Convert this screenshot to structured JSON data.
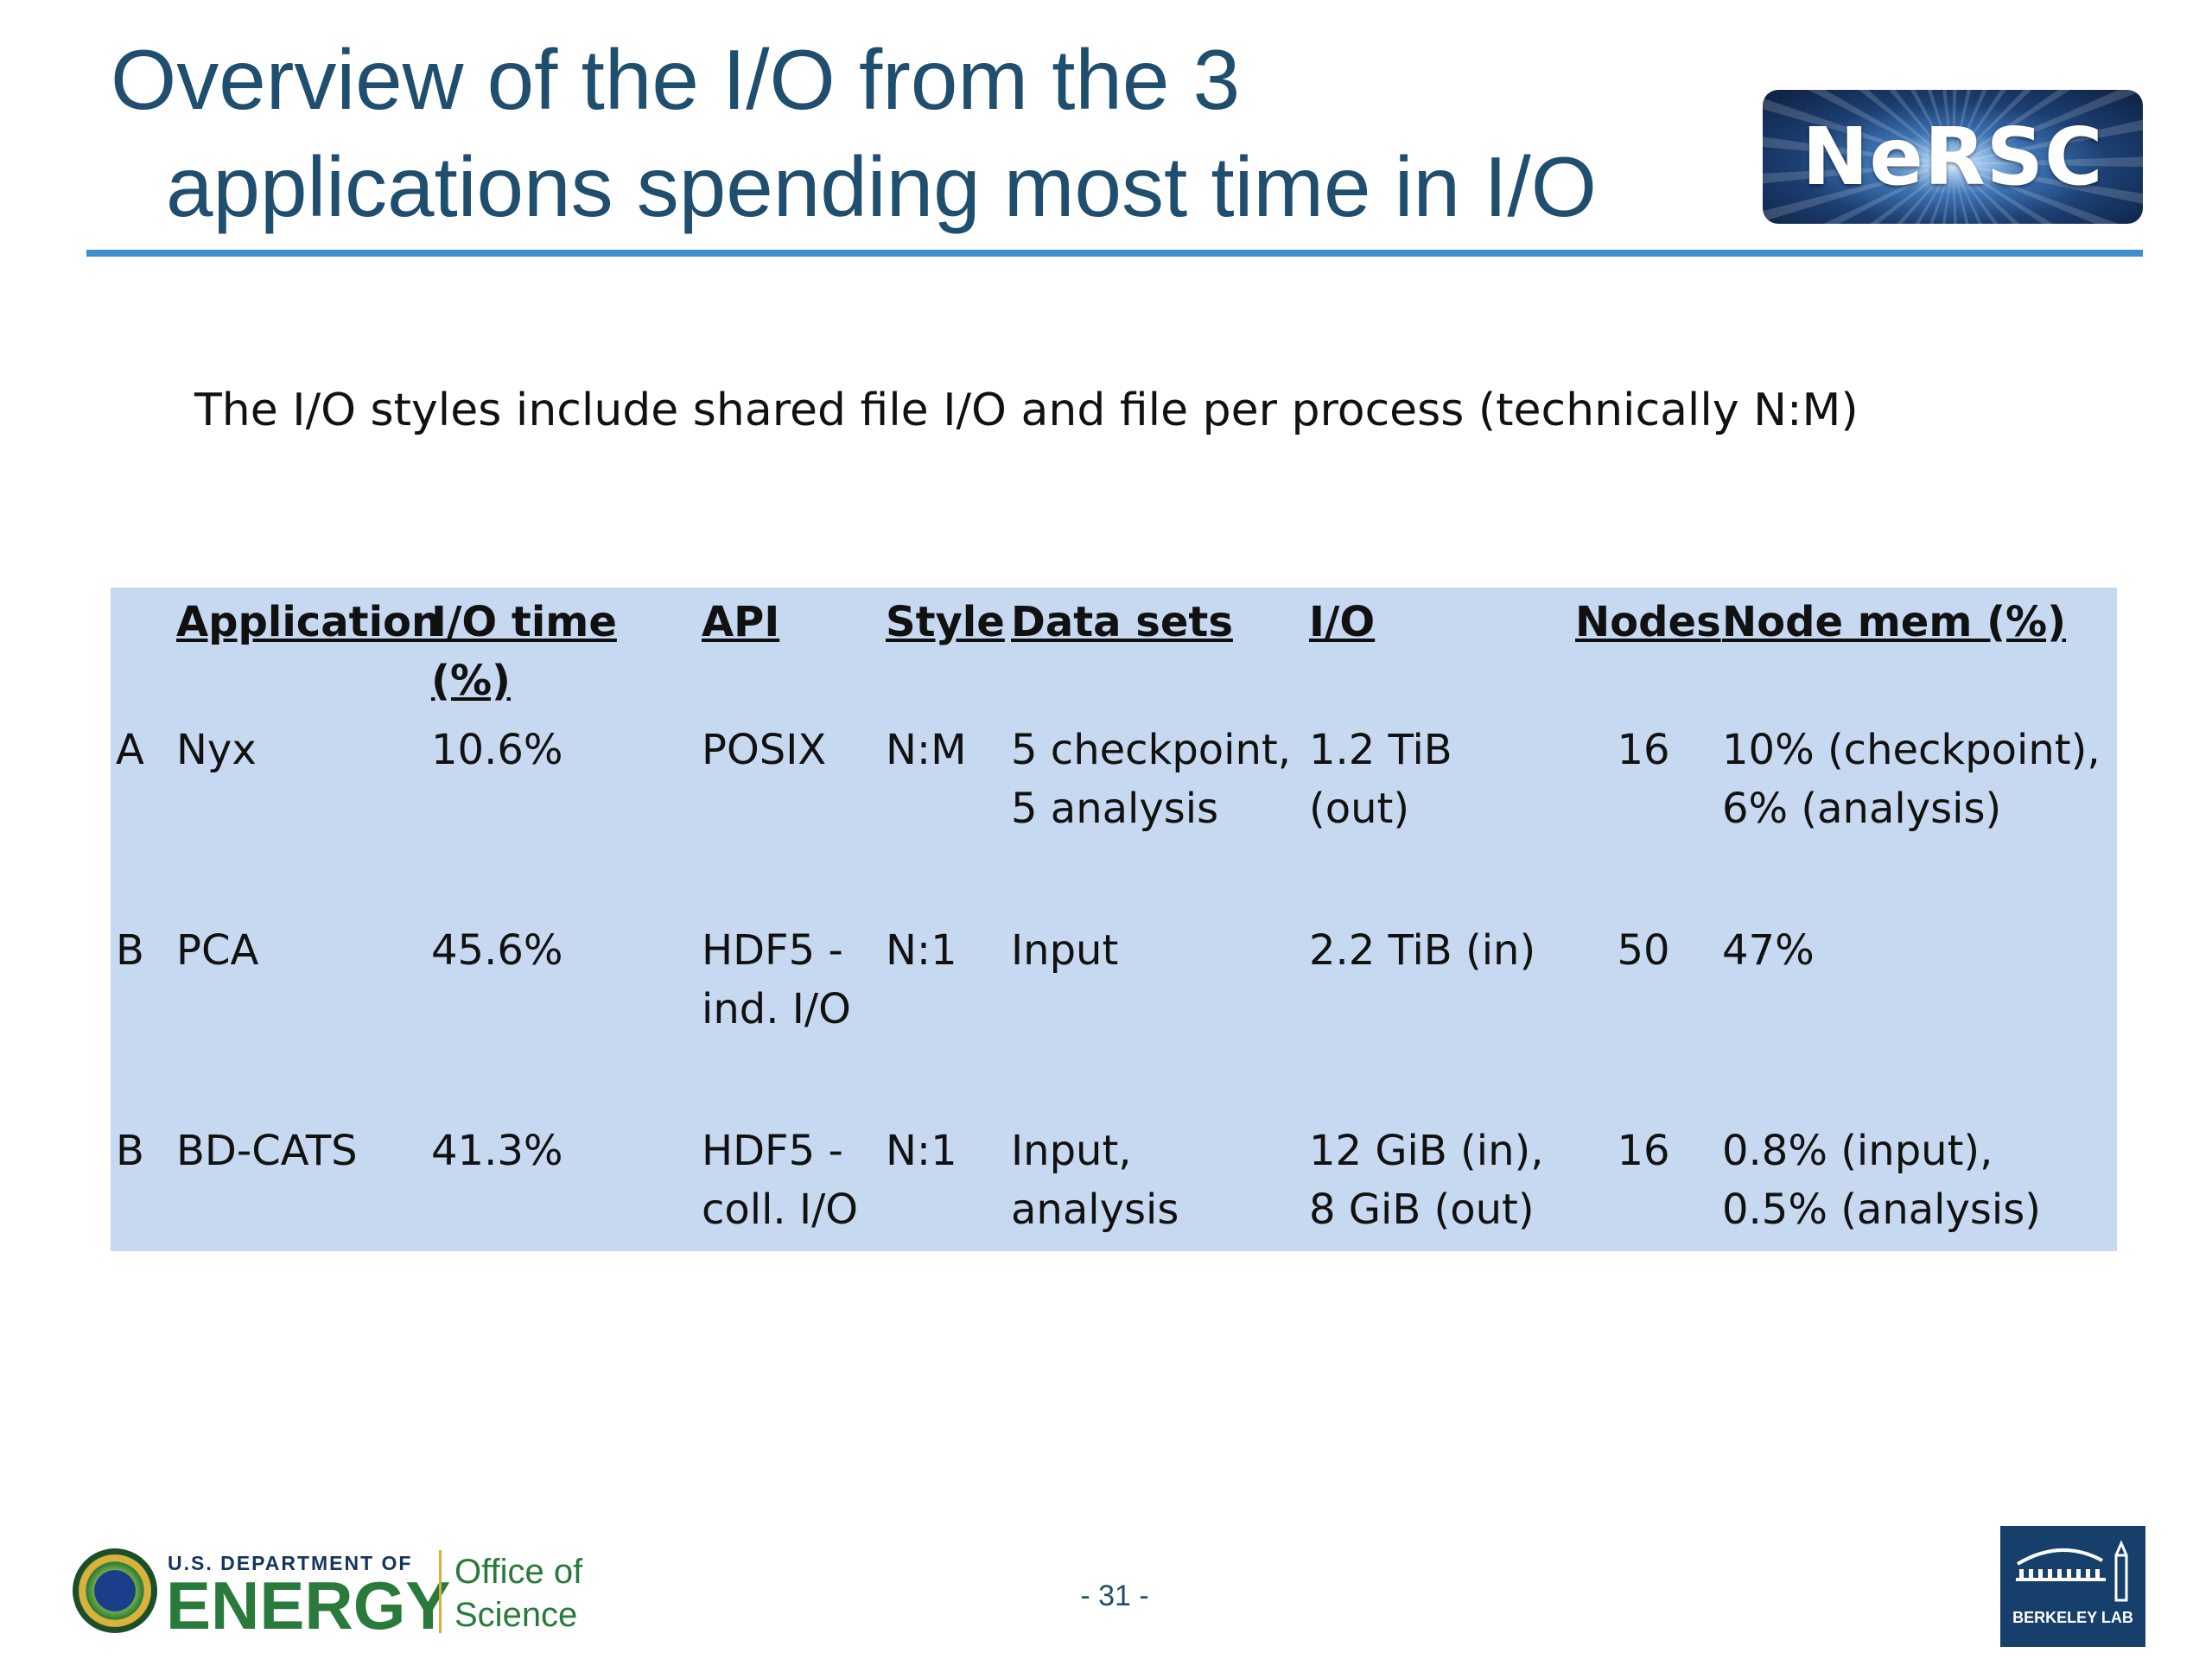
{
  "header": {
    "title_line1": "Overview of the I/O from the 3",
    "title_line2": "applications spending most time in I/O",
    "logo_text": "NeRSC"
  },
  "subtitle": "The I/O styles include shared file I/O and file per process (technically N:M)",
  "table": {
    "headers": [
      "",
      "Application",
      "I/O time (%)",
      "API",
      "Style",
      "Data sets",
      "I/O",
      "Nodes",
      "Node mem (%)"
    ],
    "rows": [
      {
        "group": "A",
        "application": "Nyx",
        "io_time": "10.6%",
        "api_line1": "POSIX",
        "api_line2": "",
        "style": "N:M",
        "datasets_line1": "5 checkpoint,",
        "datasets_line2": "5 analysis",
        "io_line1": "1.2 TiB (out)",
        "io_line2": "",
        "nodes": "16",
        "mem_line1": "10% (checkpoint),",
        "mem_line2": "6% (analysis)"
      },
      {
        "group": "B",
        "application": "PCA",
        "io_time": "45.6%",
        "api_line1": "HDF5 -",
        "api_line2": "ind. I/O",
        "style": "N:1",
        "datasets_line1": "Input",
        "datasets_line2": "",
        "io_line1": "2.2 TiB (in)",
        "io_line2": "",
        "nodes": "50",
        "mem_line1": "47%",
        "mem_line2": ""
      },
      {
        "group": "B",
        "application": "BD-CATS",
        "io_time": "41.3%",
        "api_line1": "HDF5 -",
        "api_line2": "coll. I/O",
        "style": "N:1",
        "datasets_line1": "Input,",
        "datasets_line2": "analysis",
        "io_line1": "12 GiB (in),",
        "io_line2": "8 GiB (out)",
        "nodes": "16",
        "mem_line1": "0.8% (input),",
        "mem_line2": "0.5% (analysis)"
      }
    ]
  },
  "footer": {
    "page_number": "- 31 -",
    "doe_dept": "U.S. DEPARTMENT OF",
    "doe_energy": "ENERGY",
    "doe_office_line1": "Office of",
    "doe_office_line2": "Science",
    "berkeley_text": "BERKELEY LAB"
  }
}
